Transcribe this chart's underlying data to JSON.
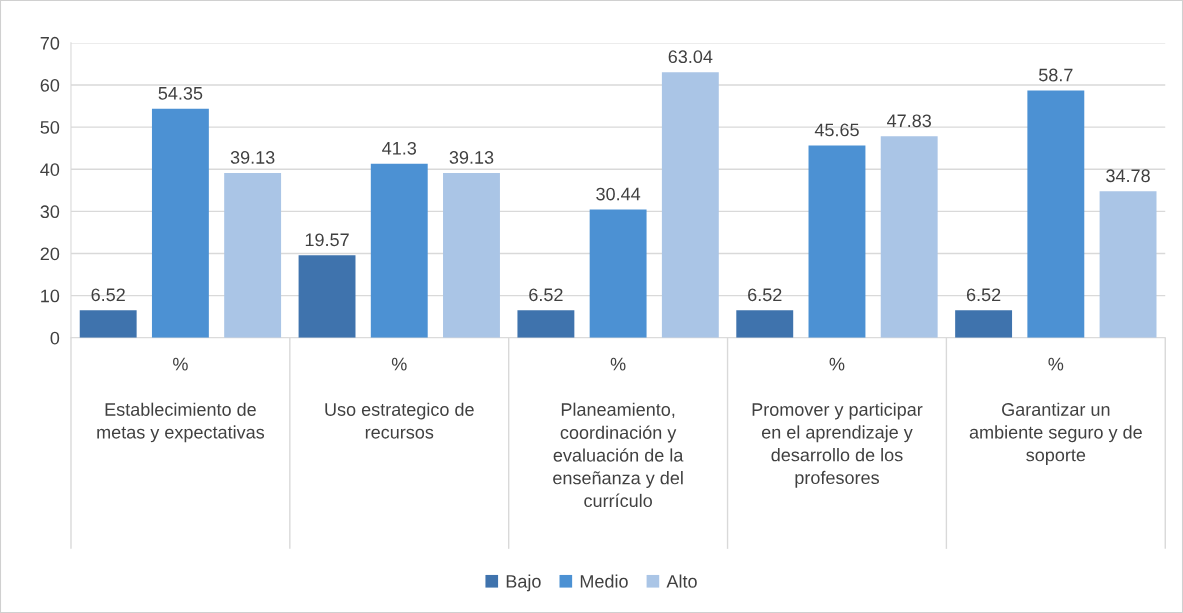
{
  "chart_data": {
    "type": "bar",
    "categories": [
      "%\n\nEstablecimiento de\nmetas y expectativas",
      "%\n\nUso estrategico de\nrecursos",
      "%\n\nPlaneamiento,\ncoordinación y\nevaluación de la\nenseñanza y del\ncurrículo",
      "%\n\nPromover y participar\nen el aprendizaje y\ndesarrollo de los\nprofesores",
      "%\n\nGarantizar un\nambiente seguro y de\nsoporte"
    ],
    "series": [
      {
        "name": "Bajo",
        "color": "#3f73ad",
        "values": [
          6.52,
          19.57,
          6.52,
          6.52,
          6.52
        ]
      },
      {
        "name": "Medio",
        "color": "#4c91d3",
        "values": [
          54.35,
          41.3,
          30.44,
          45.65,
          58.7
        ]
      },
      {
        "name": "Alto",
        "color": "#aac5e6",
        "values": [
          39.13,
          39.13,
          63.04,
          47.83,
          34.78
        ]
      }
    ],
    "ylim": [
      0,
      70
    ],
    "yticks": [
      0,
      10,
      20,
      30,
      40,
      50,
      60,
      70
    ],
    "grid": "y",
    "legend": "bottom",
    "data_labels": true
  }
}
